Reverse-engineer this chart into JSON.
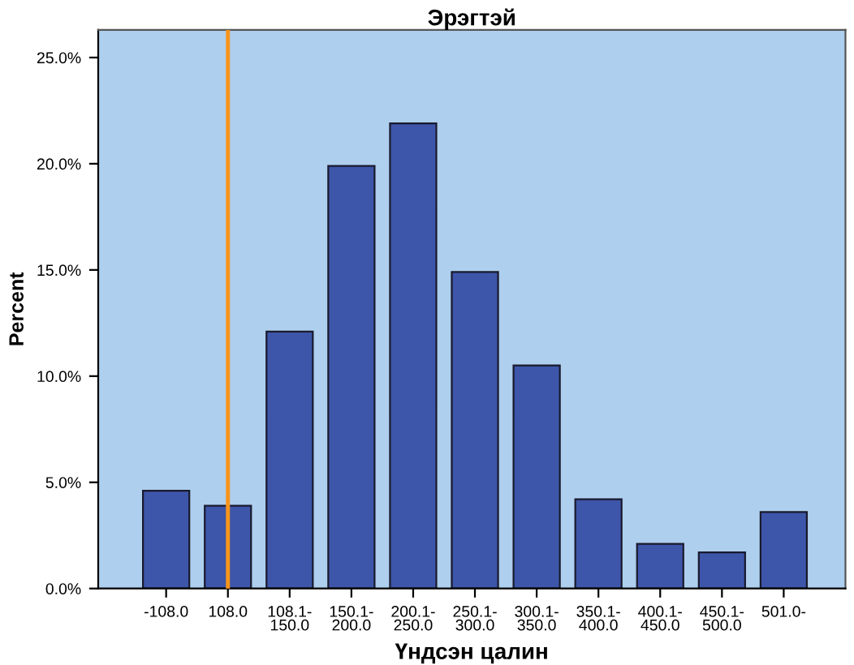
{
  "chart_data": {
    "type": "bar",
    "title": "Эрэгтэй",
    "xlabel": "Үндсэн цалин",
    "ylabel": "Percent",
    "categories": [
      "-108.0",
      "108.0",
      "108.1-\n150.0",
      "150.1-\n200.0",
      "200.1-\n250.0",
      "250.1-\n300.0",
      "300.1-\n350.0",
      "350.1-\n400.0",
      "400.1-\n450.0",
      "450.1-\n500.0",
      "501.0-"
    ],
    "values": [
      4.6,
      3.9,
      12.1,
      19.9,
      21.9,
      14.9,
      10.5,
      4.2,
      2.1,
      1.7,
      3.6
    ],
    "color": "#3d56a9",
    "ylim": [
      0,
      26.3
    ],
    "yticks": [
      {
        "value": 0,
        "label": "0.0%"
      },
      {
        "value": 5,
        "label": "5.0%"
      },
      {
        "value": 10,
        "label": "10.0%"
      },
      {
        "value": 15,
        "label": "15.0%"
      },
      {
        "value": 20,
        "label": "20.0%"
      },
      {
        "value": 25,
        "label": "25.0%"
      }
    ],
    "ref_lines": [
      {
        "axis": "x",
        "value": "108.0",
        "color": "#f7941d"
      }
    ],
    "grid": false
  }
}
